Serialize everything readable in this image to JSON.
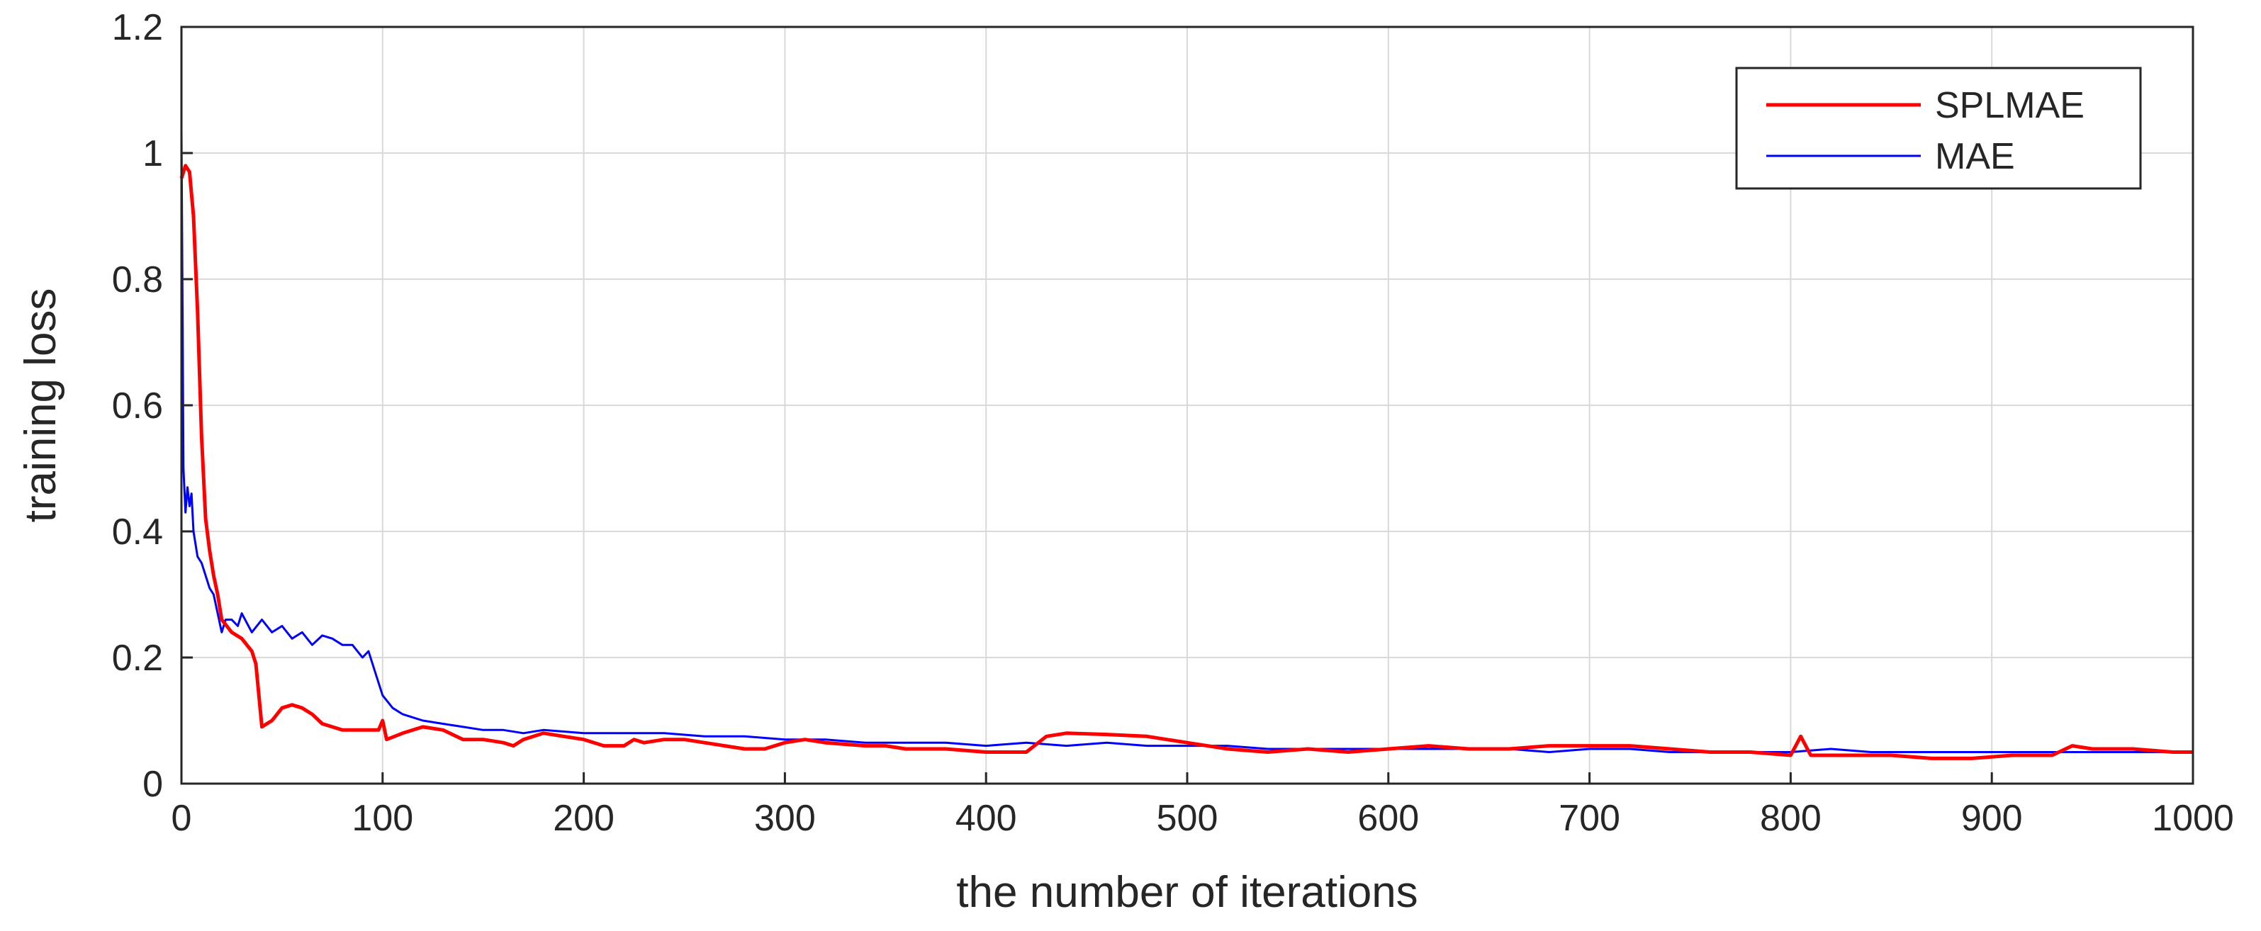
{
  "chart_data": {
    "type": "line",
    "xlabel": "the number of iterations",
    "ylabel": "training loss",
    "xlim": [
      0,
      1000
    ],
    "ylim": [
      0,
      1.2
    ],
    "xticks": [
      0,
      100,
      200,
      300,
      400,
      500,
      600,
      700,
      800,
      900,
      1000
    ],
    "yticks": [
      0,
      0.2,
      0.4,
      0.6,
      0.8,
      1,
      1.2
    ],
    "xtick_labels": [
      "0",
      "100",
      "200",
      "300",
      "400",
      "500",
      "600",
      "700",
      "800",
      "900",
      "1000"
    ],
    "ytick_labels": [
      "0",
      "0.2",
      "0.4",
      "0.6",
      "0.8",
      "1",
      "1.2"
    ],
    "grid": true,
    "legend_position": "top-right",
    "series": [
      {
        "name": "SPLMAE",
        "color": "#ff0000",
        "x": [
          0,
          2,
          4,
          6,
          8,
          10,
          12,
          14,
          16,
          18,
          20,
          25,
          30,
          35,
          37,
          40,
          45,
          50,
          55,
          60,
          65,
          70,
          80,
          90,
          98,
          100,
          102,
          110,
          120,
          130,
          140,
          150,
          160,
          165,
          170,
          180,
          190,
          200,
          210,
          220,
          225,
          230,
          240,
          250,
          260,
          270,
          280,
          290,
          300,
          310,
          320,
          340,
          350,
          360,
          380,
          400,
          420,
          430,
          440,
          460,
          480,
          500,
          520,
          540,
          560,
          580,
          600,
          620,
          640,
          660,
          680,
          700,
          720,
          740,
          760,
          780,
          800,
          805,
          810,
          830,
          850,
          870,
          890,
          910,
          930,
          940,
          950,
          970,
          990,
          1000
        ],
        "y": [
          0.96,
          0.98,
          0.97,
          0.9,
          0.75,
          0.55,
          0.42,
          0.37,
          0.33,
          0.3,
          0.26,
          0.24,
          0.23,
          0.21,
          0.19,
          0.09,
          0.1,
          0.12,
          0.125,
          0.12,
          0.11,
          0.095,
          0.085,
          0.085,
          0.085,
          0.1,
          0.07,
          0.08,
          0.09,
          0.085,
          0.07,
          0.07,
          0.065,
          0.06,
          0.07,
          0.08,
          0.075,
          0.07,
          0.06,
          0.06,
          0.07,
          0.065,
          0.07,
          0.07,
          0.065,
          0.06,
          0.055,
          0.055,
          0.065,
          0.07,
          0.065,
          0.06,
          0.06,
          0.055,
          0.055,
          0.05,
          0.05,
          0.075,
          0.08,
          0.078,
          0.075,
          0.065,
          0.055,
          0.05,
          0.055,
          0.05,
          0.055,
          0.06,
          0.055,
          0.055,
          0.06,
          0.06,
          0.06,
          0.055,
          0.05,
          0.05,
          0.045,
          0.075,
          0.045,
          0.045,
          0.045,
          0.04,
          0.04,
          0.045,
          0.045,
          0.06,
          0.055,
          0.055,
          0.05,
          0.05
        ]
      },
      {
        "name": "MAE",
        "color": "#0000ff",
        "x": [
          0,
          1,
          2,
          3,
          4,
          5,
          6,
          8,
          10,
          12,
          14,
          16,
          18,
          20,
          22,
          25,
          28,
          30,
          35,
          40,
          45,
          50,
          55,
          60,
          65,
          70,
          75,
          80,
          85,
          90,
          93,
          96,
          100,
          105,
          110,
          120,
          130,
          140,
          150,
          160,
          170,
          180,
          200,
          220,
          240,
          260,
          280,
          300,
          320,
          340,
          360,
          380,
          400,
          420,
          440,
          460,
          480,
          500,
          520,
          540,
          560,
          580,
          600,
          620,
          640,
          660,
          680,
          700,
          720,
          740,
          760,
          780,
          800,
          820,
          840,
          860,
          880,
          900,
          920,
          940,
          960,
          980,
          1000
        ],
        "y": [
          1.04,
          0.5,
          0.43,
          0.47,
          0.44,
          0.46,
          0.4,
          0.36,
          0.35,
          0.33,
          0.31,
          0.3,
          0.27,
          0.24,
          0.26,
          0.26,
          0.25,
          0.27,
          0.24,
          0.26,
          0.24,
          0.25,
          0.23,
          0.24,
          0.22,
          0.235,
          0.23,
          0.22,
          0.22,
          0.2,
          0.21,
          0.18,
          0.14,
          0.12,
          0.11,
          0.1,
          0.095,
          0.09,
          0.085,
          0.085,
          0.08,
          0.085,
          0.08,
          0.08,
          0.08,
          0.075,
          0.075,
          0.07,
          0.07,
          0.065,
          0.065,
          0.065,
          0.06,
          0.065,
          0.06,
          0.065,
          0.06,
          0.06,
          0.06,
          0.055,
          0.055,
          0.055,
          0.055,
          0.055,
          0.055,
          0.055,
          0.05,
          0.055,
          0.055,
          0.05,
          0.05,
          0.05,
          0.05,
          0.055,
          0.05,
          0.05,
          0.05,
          0.05,
          0.05,
          0.05,
          0.05,
          0.05,
          0.05
        ]
      }
    ]
  }
}
